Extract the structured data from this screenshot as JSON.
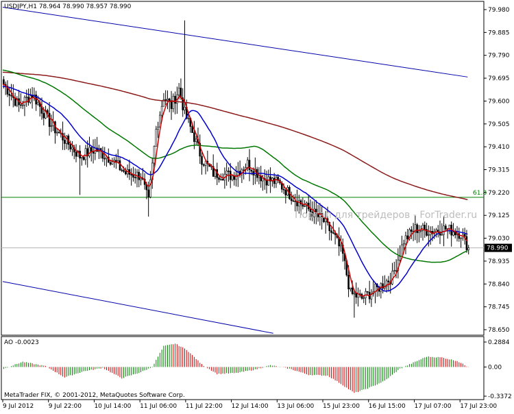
{
  "header": {
    "symbol_line": "USDJPY,H1  78.964 78.990 78.957 78.990"
  },
  "watermark": "Портал для трейдеров - ForTrader.ru",
  "footer": {
    "copyright": "MetaTrader FIX, © 2001-2012, MetaQuotes Software Corp."
  },
  "colors": {
    "candle": "#000000",
    "ma_fast": "#cc0000",
    "ma_mid": "#0000cc",
    "ma_slow": "#007700",
    "ma_long": "#8b1a1a",
    "channel": "#0000aa",
    "fibo": "#008000",
    "ao_up": "#008000",
    "ao_down": "#cc0000"
  },
  "chart_data": [
    {
      "type": "candlestick",
      "symbol": "USDJPY",
      "timeframe": "H1",
      "ylim": [
        78.65,
        79.98
      ],
      "yticks": [
        "79.980",
        "79.885",
        "79.790",
        "79.695",
        "79.600",
        "79.505",
        "79.410",
        "79.315",
        "79.220",
        "79.125",
        "79.030",
        "78.935",
        "78.840",
        "78.745",
        "78.650"
      ],
      "xticks": [
        "9 Jul 2012",
        "9 Jul 22:00",
        "10 Jul 14:00",
        "11 Jul 06:00",
        "11 Jul 22:00",
        "12 Jul 14:00",
        "13 Jul 06:00",
        "15 Jul 23:00",
        "16 Jul 15:00",
        "17 Jul 07:00",
        "17 Jul 23:00"
      ],
      "bars_per_tick": 16,
      "last_price": "78.990",
      "close_anchors": [
        [
          0,
          79.67
        ],
        [
          8,
          79.58
        ],
        [
          15,
          79.63
        ],
        [
          25,
          79.5
        ],
        [
          32,
          79.44
        ],
        [
          40,
          79.37
        ],
        [
          48,
          79.4
        ],
        [
          56,
          79.36
        ],
        [
          64,
          79.3
        ],
        [
          72,
          79.29
        ],
        [
          76,
          79.18
        ],
        [
          80,
          79.48
        ],
        [
          84,
          79.62
        ],
        [
          88,
          79.58
        ],
        [
          92,
          79.65
        ],
        [
          95,
          79.55
        ],
        [
          100,
          79.45
        ],
        [
          104,
          79.36
        ],
        [
          110,
          79.3
        ],
        [
          120,
          79.29
        ],
        [
          128,
          79.34
        ],
        [
          136,
          79.28
        ],
        [
          144,
          79.26
        ],
        [
          152,
          79.2
        ],
        [
          160,
          79.15
        ],
        [
          168,
          79.1
        ],
        [
          174,
          79.03
        ],
        [
          178,
          78.96
        ],
        [
          182,
          78.8
        ],
        [
          188,
          78.78
        ],
        [
          196,
          78.82
        ],
        [
          204,
          78.87
        ],
        [
          210,
          79.02
        ],
        [
          216,
          79.07
        ],
        [
          224,
          79.06
        ],
        [
          232,
          79.07
        ],
        [
          240,
          79.05
        ],
        [
          244,
          78.99
        ]
      ],
      "fibo_level": {
        "label": "61.8",
        "price": 79.2
      },
      "channel_upper": [
        [
          0,
          79.99
        ],
        [
          244,
          79.7
        ]
      ],
      "channel_lower": [
        [
          0,
          78.85
        ],
        [
          142,
          78.635
        ]
      ],
      "ma_fast_period": 5,
      "ma_mid_period": 21,
      "ma_slow_period": 55,
      "ma_long_period": 200
    },
    {
      "type": "bar",
      "indicator": "AO",
      "label": "AO -0.0023",
      "ylim": [
        -0.3372,
        0.2884
      ],
      "yticks": [
        "0.2884",
        "0.00",
        "-0.3372"
      ],
      "value_anchors": [
        [
          0,
          -0.02
        ],
        [
          10,
          0.06
        ],
        [
          22,
          0.01
        ],
        [
          32,
          -0.12
        ],
        [
          42,
          -0.05
        ],
        [
          52,
          -0.01
        ],
        [
          62,
          -0.13
        ],
        [
          72,
          -0.06
        ],
        [
          78,
          0.0
        ],
        [
          84,
          0.24
        ],
        [
          90,
          0.27
        ],
        [
          96,
          0.2
        ],
        [
          104,
          0.03
        ],
        [
          112,
          -0.08
        ],
        [
          122,
          -0.07
        ],
        [
          132,
          -0.03
        ],
        [
          140,
          0.02
        ],
        [
          150,
          -0.02
        ],
        [
          160,
          -0.09
        ],
        [
          170,
          -0.1
        ],
        [
          176,
          -0.18
        ],
        [
          184,
          -0.3
        ],
        [
          192,
          -0.24
        ],
        [
          200,
          -0.16
        ],
        [
          208,
          -0.02
        ],
        [
          216,
          0.06
        ],
        [
          222,
          0.12
        ],
        [
          230,
          0.11
        ],
        [
          238,
          0.07
        ],
        [
          244,
          -0.0023
        ]
      ]
    }
  ]
}
